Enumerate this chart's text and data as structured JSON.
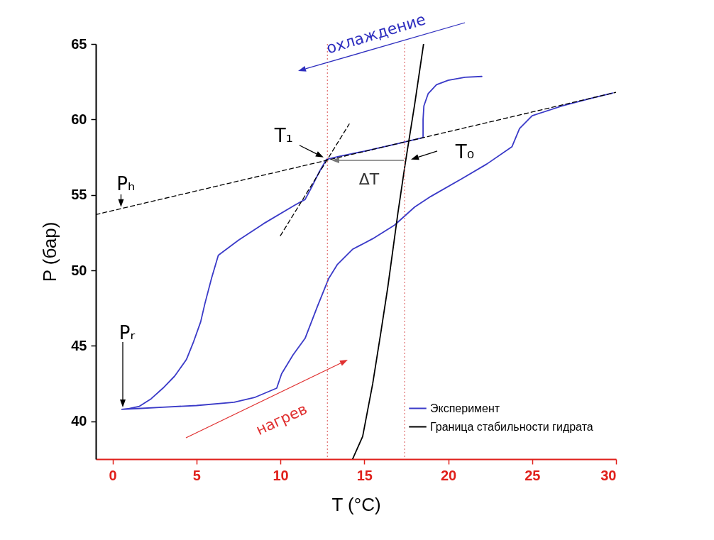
{
  "chart_data": {
    "type": "line",
    "xlabel": "T (°C)",
    "ylabel": "P (бар)",
    "xlim": [
      -1,
      30
    ],
    "ylim": [
      37.5,
      65
    ],
    "xticks": [
      0,
      5,
      10,
      15,
      20,
      25,
      30
    ],
    "yticks": [
      40,
      45,
      50,
      55,
      60,
      65
    ],
    "legend": "bottom right",
    "series": [
      {
        "name": "Эксперимент",
        "color": "#3a3ac8",
        "x": [
          22.0,
          21.0,
          20.0,
          19.3,
          18.8,
          18.55,
          18.5,
          18.5,
          17.0,
          15.0,
          13.5,
          12.74,
          12.3,
          11.9,
          11.47,
          10.9,
          9.0,
          7.5,
          6.3,
          5.9,
          5.5,
          5.25,
          4.8,
          4.4,
          3.7,
          3.0,
          2.3,
          1.6,
          1.0,
          0.55,
          1.5,
          3.0,
          5.0,
          7.24,
          8.5,
          9.78,
          10.07,
          10.75,
          11.47,
          12.2,
          12.87,
          13.4,
          14.3,
          15.5,
          16.8,
          18.0,
          18.96,
          20.8,
          22.3,
          23.8,
          24.25,
          25.0,
          26.8,
          28.5,
          29.8
        ],
        "values": [
          62.85,
          62.8,
          62.6,
          62.3,
          61.7,
          60.9,
          60.0,
          58.8,
          58.4,
          57.9,
          57.55,
          57.35,
          56.5,
          55.6,
          54.7,
          54.35,
          53.1,
          52.0,
          51.0,
          49.5,
          47.8,
          46.6,
          45.2,
          44.1,
          43.0,
          42.2,
          41.5,
          41.0,
          40.85,
          40.8,
          40.85,
          40.94,
          41.05,
          41.27,
          41.6,
          42.2,
          43.15,
          44.4,
          45.5,
          47.6,
          49.45,
          50.4,
          51.4,
          52.1,
          53.0,
          54.2,
          54.9,
          56.07,
          57.05,
          58.2,
          59.4,
          60.25,
          60.9,
          61.4,
          61.75
        ]
      },
      {
        "name": "Граница стабильности гидрата",
        "color": "#000000",
        "x": [
          14.3,
          14.9,
          15.5,
          16.0,
          16.4,
          17.0,
          17.44,
          18.0,
          18.53
        ],
        "values": [
          37.5,
          39.0,
          42.5,
          46.0,
          48.9,
          53.8,
          57.1,
          61.0,
          65.0
        ]
      },
      {
        "color": "#000000",
        "line_style": "dashed",
        "x": [
          -1,
          30
        ],
        "values": [
          53.7,
          61.8
        ]
      },
      {
        "color": "#000000",
        "line_style": "dashed",
        "x": [
          10.0,
          14.1
        ],
        "values": [
          52.3,
          59.7
        ]
      }
    ],
    "ref_lines": [
      {
        "axis": "x",
        "value": 12.8,
        "color": "#e07070",
        "line_style": "dotted"
      },
      {
        "axis": "x",
        "value": 17.4,
        "color": "#e07070",
        "line_style": "dotted"
      }
    ],
    "annotations": [
      "охлаждение",
      "нагрев",
      {
        "text": "T₁",
        "x": 12.74,
        "y": 57.35
      },
      {
        "text": "T₀",
        "x": 17.44,
        "y": 57.3
      },
      "ΔT",
      {
        "text": "Pₕ",
        "x": 0.5,
        "y": 54.1
      },
      "Pᵣ"
    ]
  }
}
